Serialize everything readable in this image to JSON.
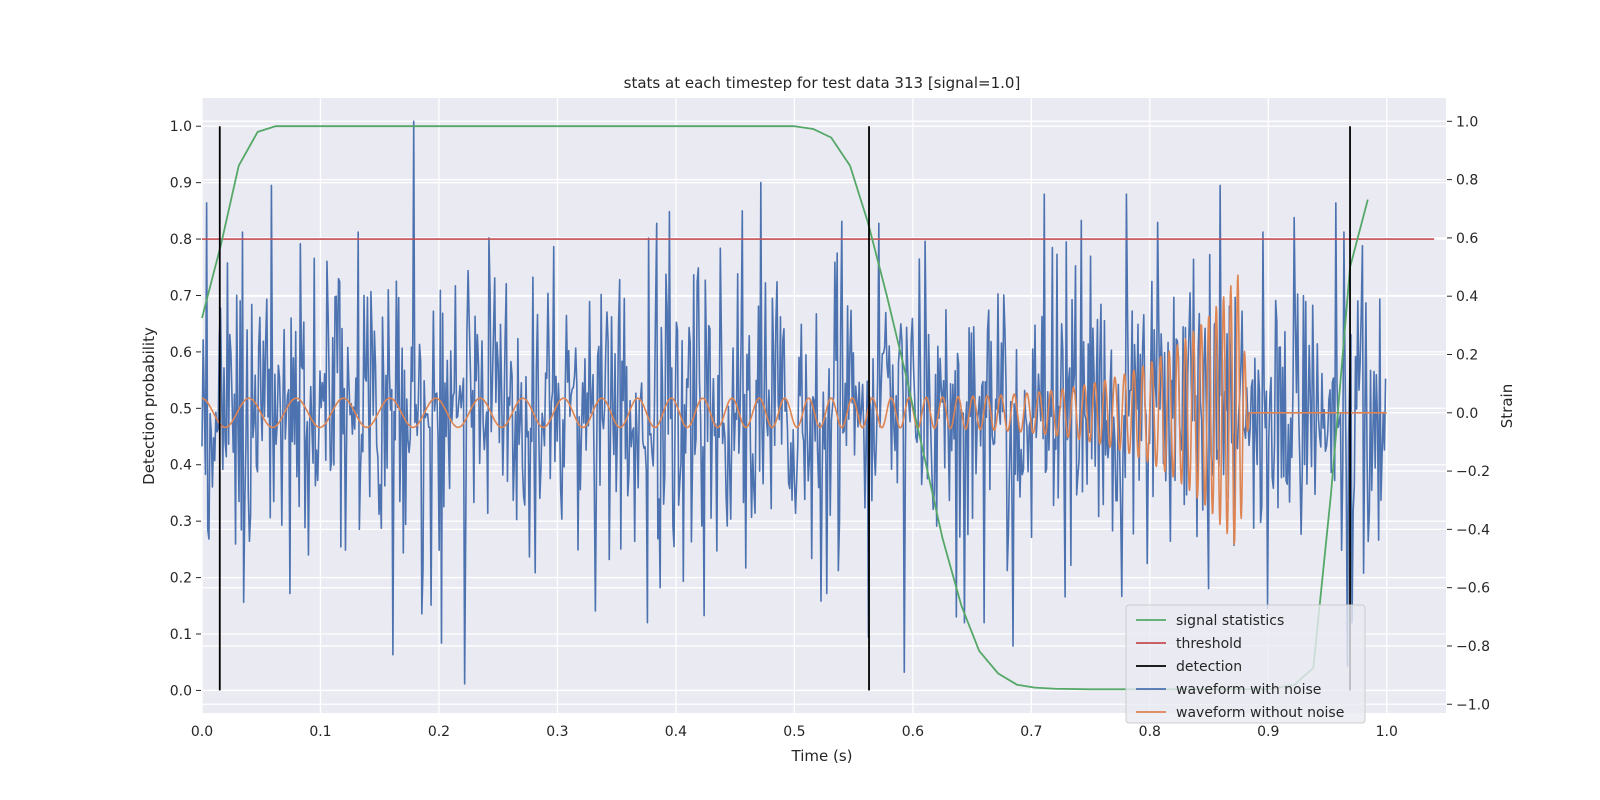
{
  "chart_data": {
    "type": "line",
    "title": "stats at each timestep for test data 313 [signal=1.0]",
    "xlabel": "Time (s)",
    "ylabel_left": "Detection probability",
    "ylabel_right": "Strain",
    "xlim": [
      0.0,
      1.05
    ],
    "ylim_left": [
      -0.04,
      1.05
    ],
    "ylim_right": [
      -1.03,
      1.08
    ],
    "xticks": [
      "0.0",
      "0.1",
      "0.2",
      "0.3",
      "0.4",
      "0.5",
      "0.6",
      "0.7",
      "0.8",
      "0.9",
      "1.0"
    ],
    "xtick_values": [
      0.0,
      0.1,
      0.2,
      0.3,
      0.4,
      0.5,
      0.6,
      0.7,
      0.8,
      0.9,
      1.0
    ],
    "yticks_left": [
      "0.0",
      "0.1",
      "0.2",
      "0.3",
      "0.4",
      "0.5",
      "0.6",
      "0.7",
      "0.8",
      "0.9",
      "1.0"
    ],
    "ytick_values_left": [
      0.0,
      0.1,
      0.2,
      0.3,
      0.4,
      0.5,
      0.6,
      0.7,
      0.8,
      0.9,
      1.0
    ],
    "yticks_right": [
      "−1.0",
      "−0.8",
      "−0.6",
      "−0.4",
      "−0.2",
      "0.0",
      "0.2",
      "0.4",
      "0.6",
      "0.8",
      "1.0"
    ],
    "ytick_values_right": [
      -1.0,
      -0.8,
      -0.6,
      -0.4,
      -0.2,
      0.0,
      0.2,
      0.4,
      0.6,
      0.8,
      1.0
    ],
    "grid": true,
    "legend_position": "lower-right",
    "colors": {
      "background": "#eaeaf2",
      "grid": "#ffffff",
      "signal": "#55a868",
      "threshold": "#c44e52",
      "detection": "#000000",
      "noisy": "#4c72b0",
      "clean": "#dd8452"
    },
    "series": [
      {
        "name": "signal statistics",
        "axis": "left",
        "color": "#55a868",
        "x": [
          0.0,
          0.016,
          0.031,
          0.047,
          0.062,
          0.078,
          0.1,
          0.2,
          0.3,
          0.4,
          0.5,
          0.516,
          0.531,
          0.547,
          0.562,
          0.578,
          0.594,
          0.609,
          0.625,
          0.641,
          0.656,
          0.672,
          0.688,
          0.703,
          0.72,
          0.75,
          0.8,
          0.85,
          0.9,
          0.922,
          0.938,
          0.953,
          0.969,
          0.984
        ],
        "y": [
          0.66,
          0.79,
          0.93,
          0.99,
          1.0,
          1.0,
          1.0,
          1.0,
          1.0,
          1.0,
          1.0,
          0.995,
          0.98,
          0.93,
          0.83,
          0.7,
          0.56,
          0.42,
          0.27,
          0.15,
          0.07,
          0.03,
          0.01,
          0.005,
          0.003,
          0.002,
          0.002,
          0.002,
          0.002,
          0.01,
          0.04,
          0.35,
          0.75,
          0.87
        ]
      },
      {
        "name": "threshold",
        "axis": "left",
        "color": "#c44e52",
        "x": [
          0.0,
          1.04
        ],
        "y": [
          0.8,
          0.8
        ]
      },
      {
        "name": "detection",
        "axis": "left",
        "color": "#000000",
        "x": [
          0.015,
          0.563,
          0.969
        ],
        "y_range": [
          0.0,
          1.0
        ]
      },
      {
        "name": "waveform with noise",
        "axis": "right",
        "color": "#4c72b0",
        "sample_count": 1024,
        "x_range": [
          0.0,
          0.999
        ],
        "spikes": [
          {
            "x": 0.001,
            "y": 0.25
          },
          {
            "x": 0.005,
            "y": -0.4
          },
          {
            "x": 0.028,
            "y": -0.45
          },
          {
            "x": 0.034,
            "y": 0.62
          },
          {
            "x": 0.035,
            "y": -0.65
          },
          {
            "x": 0.059,
            "y": 0.78
          },
          {
            "x": 0.074,
            "y": -0.62
          },
          {
            "x": 0.083,
            "y": 0.58
          },
          {
            "x": 0.095,
            "y": 0.53
          },
          {
            "x": 0.115,
            "y": 0.46
          },
          {
            "x": 0.117,
            "y": -0.46
          },
          {
            "x": 0.132,
            "y": 0.62
          },
          {
            "x": 0.161,
            "y": -0.83
          },
          {
            "x": 0.179,
            "y": 1.0
          },
          {
            "x": 0.193,
            "y": -0.66
          },
          {
            "x": 0.202,
            "y": -0.79
          },
          {
            "x": 0.222,
            "y": -0.93
          },
          {
            "x": 0.242,
            "y": 0.6
          },
          {
            "x": 0.297,
            "y": 0.57
          },
          {
            "x": 0.332,
            "y": -0.68
          },
          {
            "x": 0.384,
            "y": 0.65
          },
          {
            "x": 0.387,
            "y": -0.6
          },
          {
            "x": 0.395,
            "y": 0.69
          },
          {
            "x": 0.472,
            "y": 0.79
          },
          {
            "x": 0.527,
            "y": -0.62
          },
          {
            "x": 0.562,
            "y": -0.77
          },
          {
            "x": 0.571,
            "y": 0.65
          },
          {
            "x": 0.593,
            "y": -0.89
          },
          {
            "x": 0.637,
            "y": -0.7
          },
          {
            "x": 0.66,
            "y": -0.72
          },
          {
            "x": 0.685,
            "y": -0.8
          },
          {
            "x": 0.711,
            "y": 0.75
          },
          {
            "x": 0.742,
            "y": 0.66
          },
          {
            "x": 0.776,
            "y": -0.63
          },
          {
            "x": 0.78,
            "y": 0.75
          },
          {
            "x": 0.859,
            "y": 0.78
          },
          {
            "x": 0.895,
            "y": 0.62
          },
          {
            "x": 0.922,
            "y": 0.67
          },
          {
            "x": 0.964,
            "y": 0.62
          },
          {
            "x": 0.967,
            "y": -0.87
          },
          {
            "x": 0.98,
            "y": -0.55
          }
        ]
      },
      {
        "name": "waveform without noise",
        "axis": "right",
        "color": "#dd8452",
        "amplitude_start": 0.05,
        "amplitude_peak": 0.48,
        "frequency_start_hz": 25,
        "frequency_end_hz": 170,
        "merger_time": 0.875,
        "ringdown_end": 0.884,
        "x_end": 1.0
      }
    ]
  }
}
